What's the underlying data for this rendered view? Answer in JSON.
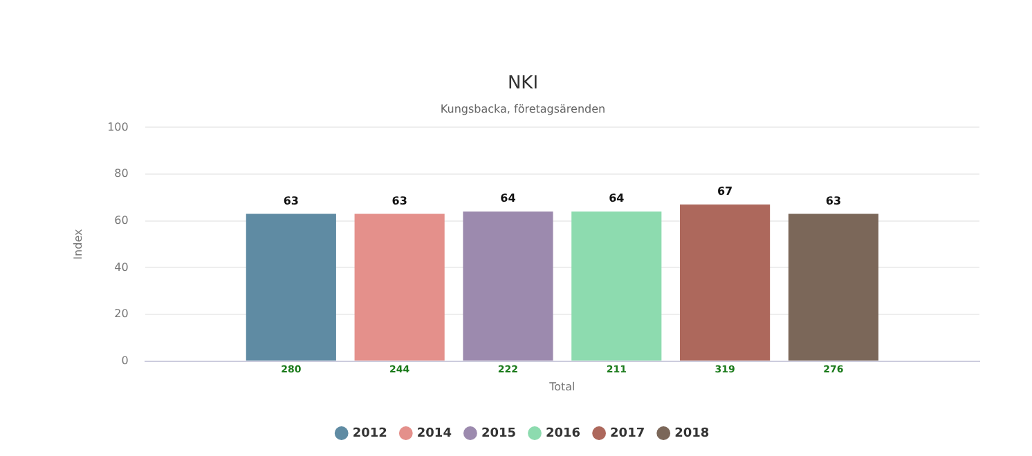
{
  "chart_data": {
    "type": "bar",
    "title": "NKI",
    "subtitle": "Kungsbacka, företagsärenden",
    "ylabel": "Index",
    "categories": [
      "Total"
    ],
    "series": [
      {
        "name": "2012",
        "color": "#5f8ba3",
        "values": [
          63
        ]
      },
      {
        "name": "2014",
        "color": "#e4908b",
        "values": [
          63
        ]
      },
      {
        "name": "2015",
        "color": "#9c8aae",
        "values": [
          64
        ]
      },
      {
        "name": "2016",
        "color": "#8ddbaf",
        "values": [
          64
        ]
      },
      {
        "name": "2017",
        "color": "#ad685c",
        "values": [
          67
        ]
      },
      {
        "name": "2018",
        "color": "#7b6759",
        "values": [
          63
        ]
      }
    ],
    "ylim": [
      0,
      100
    ],
    "yticks": [
      0,
      20,
      40,
      60,
      80,
      100
    ],
    "grid": "y",
    "legend": "bottom",
    "data_labels": true,
    "annotations": [
      "280",
      "244",
      "222",
      "211",
      "319",
      "276"
    ]
  }
}
